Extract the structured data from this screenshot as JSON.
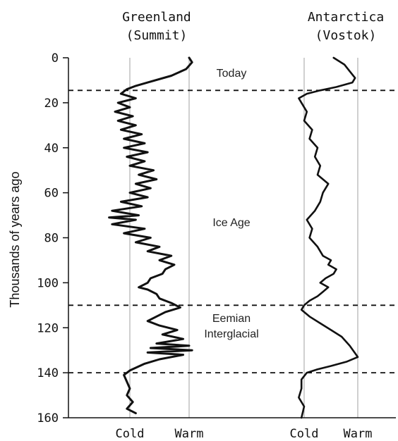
{
  "chart_data": {
    "type": "line",
    "ylabel": "Thousands of years ago",
    "ylim": [
      0,
      160
    ],
    "yticks": [
      0,
      20,
      40,
      60,
      80,
      100,
      120,
      140,
      160
    ],
    "y_inverted": true,
    "panels": [
      {
        "title_line1": "Greenland",
        "title_line2": "(Summit)",
        "x_labels": [
          "Cold",
          "Warm"
        ],
        "series": [
          {
            "x": [
              1.0,
              1.05,
              0.95,
              0.7,
              0.3,
              0.1,
              -0.05,
              -0.15,
              0.1,
              -0.2,
              0.0,
              -0.25,
              0.05,
              -0.2,
              0.1,
              -0.15,
              0.2,
              -0.1,
              0.25,
              -0.1,
              0.3,
              -0.05,
              0.25,
              0.0,
              0.4,
              0.15,
              0.45,
              0.1,
              0.35,
              0.0,
              0.3,
              -0.15,
              0.2,
              -0.3,
              0.15,
              -0.35,
              0.1,
              -0.3,
              0.25,
              -0.1,
              0.35,
              0.1,
              0.5,
              0.3,
              0.7,
              0.5,
              0.75,
              0.6,
              0.55,
              0.35,
              0.3,
              0.15,
              0.3,
              0.45,
              0.5,
              0.7,
              0.85,
              0.6,
              0.45,
              0.3,
              0.5,
              0.8,
              0.55,
              0.9,
              0.45,
              1.0,
              0.35,
              1.05,
              0.3,
              0.9,
              0.5,
              0.25,
              0.0,
              -0.1,
              -0.05,
              0.0,
              -0.05,
              0.05,
              -0.05,
              0.1
            ],
            "y": [
              0,
              2,
              5,
              8,
              11,
              12.5,
              14,
              16,
              18,
              20,
              22,
              24,
              26,
              28,
              30,
              32,
              34,
              36,
              38,
              40,
              42,
              44,
              46,
              48,
              50,
              52,
              54,
              56,
              58,
              60,
              62,
              64,
              66,
              68,
              70,
              71,
              72,
              74,
              76,
              78,
              80,
              82,
              84,
              86,
              88,
              90,
              92,
              94,
              96,
              98,
              100,
              102,
              103,
              105,
              107,
              109,
              111,
              113,
              115,
              117,
              119,
              121,
              123,
              125,
              127,
              128,
              129,
              130,
              131,
              132,
              134,
              136,
              139,
              141,
              144,
              147,
              150,
              153,
              156,
              158
            ]
          }
        ]
      },
      {
        "title_line1": "Antarctica",
        "title_line2": "(Vostok)",
        "x_labels": [
          "Cold",
          "Warm"
        ],
        "series": [
          {
            "x": [
              0.55,
              0.75,
              0.85,
              0.95,
              0.9,
              0.6,
              0.3,
              0.05,
              -0.1,
              -0.05,
              0.05,
              0.0,
              0.15,
              0.1,
              0.25,
              0.2,
              0.3,
              0.25,
              0.45,
              0.35,
              0.3,
              0.2,
              0.05,
              0.15,
              0.1,
              0.25,
              0.35,
              0.5,
              0.45,
              0.6,
              0.55,
              0.4,
              0.3,
              0.45,
              0.35,
              0.25,
              0.1,
              0.0,
              -0.05,
              0.1,
              0.3,
              0.5,
              0.7,
              0.85,
              1.0,
              0.8,
              0.5,
              0.25,
              0.05,
              -0.05,
              -0.05,
              -0.1,
              0.0,
              -0.05
            ],
            "y": [
              0,
              3,
              6,
              9,
              11,
              13,
              14.5,
              16,
              18,
              20,
              24,
              28,
              32,
              36,
              40,
              44,
              48,
              52,
              56,
              60,
              64,
              68,
              72,
              76,
              80,
              84,
              88,
              90,
              92,
              94,
              96,
              98,
              100,
              102,
              104,
              106,
              108,
              110,
              112,
              115,
              118,
              121,
              124,
              128,
              133,
              135,
              137,
              138.5,
              140,
              143,
              147,
              151,
              155,
              160
            ]
          }
        ]
      }
    ],
    "boundaries": [
      14.5,
      110,
      140
    ],
    "annotations": [
      {
        "lines": [
          "Today"
        ],
        "y": 6.5
      },
      {
        "lines": [
          "Ice Age"
        ],
        "y": 73
      },
      {
        "lines": [
          "Eemian",
          "Interglacial"
        ],
        "y": 119
      }
    ]
  }
}
